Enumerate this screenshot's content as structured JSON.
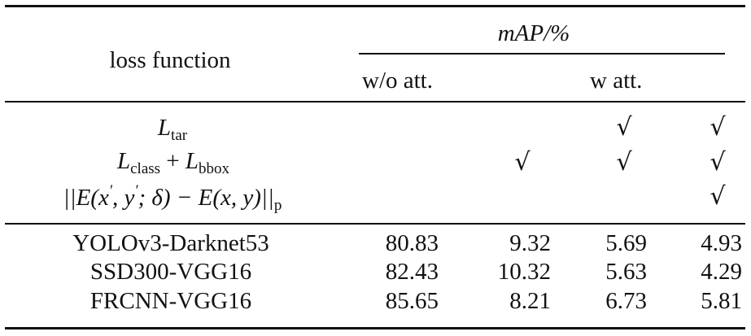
{
  "header": {
    "loss_label": "loss function",
    "metric_label": "mAP/%",
    "col_wo": "w/o att.",
    "col_w": "w att."
  },
  "loss_terms": [
    {
      "main": "L",
      "sub": "tar"
    },
    {
      "main1": "L",
      "sub1": "class",
      "op": "+",
      "main2": "L",
      "sub2": "bbox"
    },
    {
      "text_a": "||E(x",
      "p1": "′",
      "text_b": ", y",
      "p2": "′",
      "text_c": "; δ) − E(x, y)||",
      "sub": "p"
    }
  ],
  "checkmark": "√",
  "checks": [
    [
      false,
      false,
      true,
      true
    ],
    [
      false,
      true,
      true,
      true
    ],
    [
      false,
      false,
      false,
      true
    ]
  ],
  "rows": [
    {
      "model": "YOLOv3-Darknet53",
      "values": [
        "80.83",
        "9.32",
        "5.69",
        "4.93"
      ]
    },
    {
      "model": "SSD300-VGG16",
      "values": [
        "82.43",
        "10.32",
        "5.63",
        "4.29"
      ]
    },
    {
      "model": "FRCNN-VGG16",
      "values": [
        "85.65",
        "8.21",
        "6.73",
        "5.81"
      ]
    }
  ]
}
